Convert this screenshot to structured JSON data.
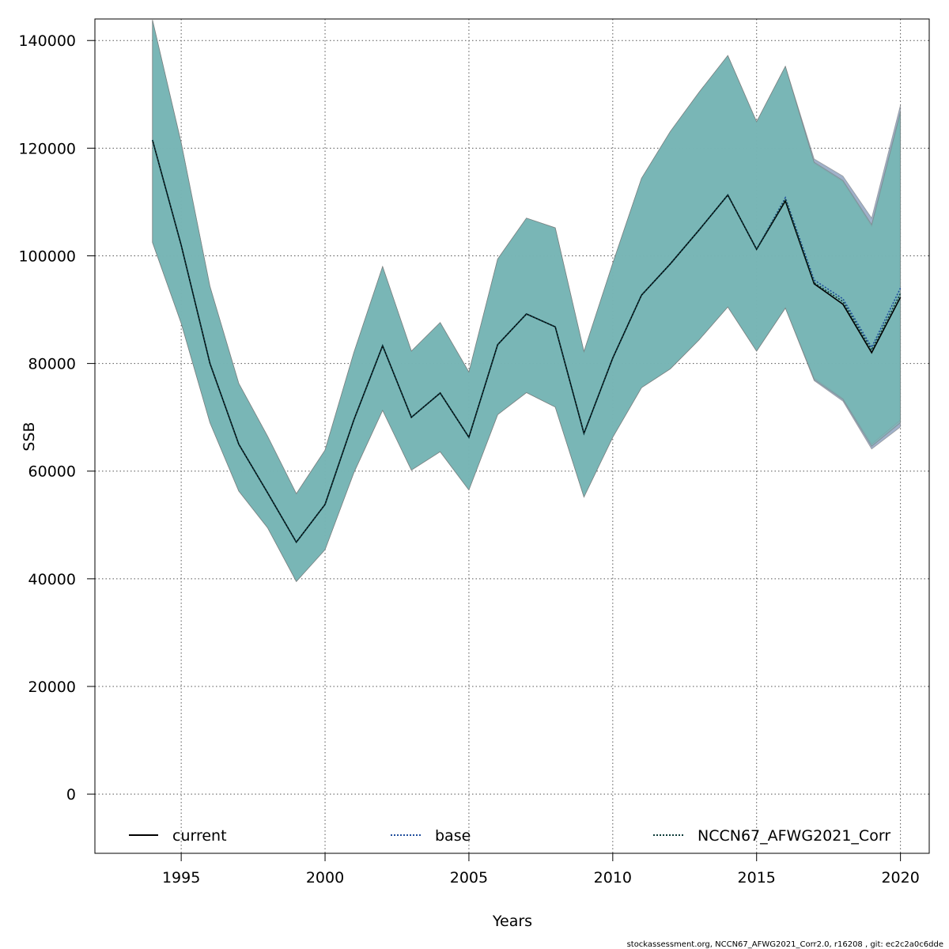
{
  "chart_data": {
    "type": "area",
    "xlabel": "Years",
    "ylabel": "SSB",
    "xlim": [
      1992,
      2021
    ],
    "ylim": [
      -11000,
      144000
    ],
    "x_ticks": [
      1995,
      2000,
      2005,
      2010,
      2015,
      2020
    ],
    "y_ticks": [
      0,
      20000,
      40000,
      60000,
      80000,
      100000,
      120000,
      140000
    ],
    "grid": true,
    "legend_position": "bottom",
    "x": [
      1994,
      1995,
      1996,
      1997,
      1998,
      1999,
      2000,
      2001,
      2002,
      2003,
      2004,
      2005,
      2006,
      2007,
      2008,
      2009,
      2010,
      2011,
      2012,
      2013,
      2014,
      2015,
      2016,
      2017,
      2018,
      2019,
      2020
    ],
    "series": [
      {
        "name": "current",
        "line_style": "solid",
        "line_color": "#000000",
        "band_color": "#8fa3bf",
        "values": [
          121500,
          102000,
          80000,
          65000,
          56000,
          46800,
          53800,
          69500,
          83300,
          70000,
          74500,
          66300,
          83500,
          89200,
          86800,
          67000,
          81000,
          92700,
          98500,
          104800,
          111300,
          101200,
          110200,
          94800,
          91000,
          82000,
          92300
        ],
        "lower": [
          102500,
          87500,
          69000,
          56300,
          49500,
          39500,
          45400,
          59700,
          71300,
          60200,
          63600,
          56500,
          70500,
          74600,
          71900,
          55200,
          66300,
          75500,
          79000,
          84400,
          90500,
          82300,
          90300,
          76800,
          73000,
          64100,
          68200
        ],
        "upper": [
          143800,
          121000,
          94300,
          76300,
          66500,
          55800,
          63900,
          82000,
          98000,
          82300,
          87600,
          78400,
          99400,
          107000,
          105200,
          82200,
          98600,
          114400,
          123100,
          130400,
          137200,
          124900,
          135200,
          118000,
          114800,
          107000,
          128000
        ]
      },
      {
        "name": "base",
        "line_style": "dotted",
        "line_color": "#1f4e9c",
        "band_color": "#6fbfb5",
        "values": [
          121500,
          102000,
          80000,
          65000,
          56000,
          46800,
          53800,
          69500,
          83300,
          70000,
          74500,
          66300,
          83500,
          89200,
          86800,
          67000,
          81000,
          92700,
          98500,
          104800,
          111300,
          101200,
          110800,
          95500,
          92000,
          83000,
          94000
        ],
        "lower": [
          102500,
          87500,
          69000,
          56300,
          49500,
          39500,
          45400,
          59700,
          71300,
          60200,
          63600,
          56500,
          70500,
          74600,
          71900,
          55200,
          66300,
          75500,
          79000,
          84400,
          90500,
          82300,
          90300,
          77300,
          73500,
          65000,
          69500
        ],
        "upper": [
          143800,
          121000,
          94300,
          76300,
          66500,
          55800,
          63900,
          82000,
          98000,
          82300,
          87600,
          78400,
          99400,
          107000,
          105200,
          82200,
          98600,
          114400,
          123100,
          130400,
          137200,
          124900,
          135200,
          117200,
          113800,
          105500,
          126500
        ]
      },
      {
        "name": "NCCN67_AFWG2021_Corr",
        "line_style": "dotted",
        "line_color": "#0d3b38",
        "band_color": "#78b3b4",
        "values": [
          121500,
          102000,
          80000,
          65000,
          56000,
          46800,
          53800,
          69500,
          83300,
          70000,
          74500,
          66300,
          83500,
          89200,
          86800,
          67000,
          81000,
          92700,
          98500,
          104800,
          111300,
          101200,
          110500,
          95000,
          91500,
          82500,
          93000
        ],
        "lower": [
          102500,
          87500,
          69000,
          56300,
          49500,
          39500,
          45400,
          59700,
          71300,
          60200,
          63600,
          56500,
          70500,
          74600,
          71900,
          55200,
          66300,
          75500,
          79000,
          84400,
          90500,
          82300,
          90300,
          77000,
          73300,
          64600,
          69000
        ],
        "upper": [
          143800,
          121000,
          94300,
          76300,
          66500,
          55800,
          63900,
          82000,
          98000,
          82300,
          87600,
          78400,
          99400,
          107000,
          105200,
          82200,
          98600,
          114400,
          123100,
          130400,
          137200,
          124900,
          135200,
          117400,
          114000,
          105800,
          126800
        ]
      }
    ],
    "footer": "stockassessment.org, NCCN67_AFWG2021_Corr2.0, r16208 , git: ec2c2a0c6dde"
  }
}
